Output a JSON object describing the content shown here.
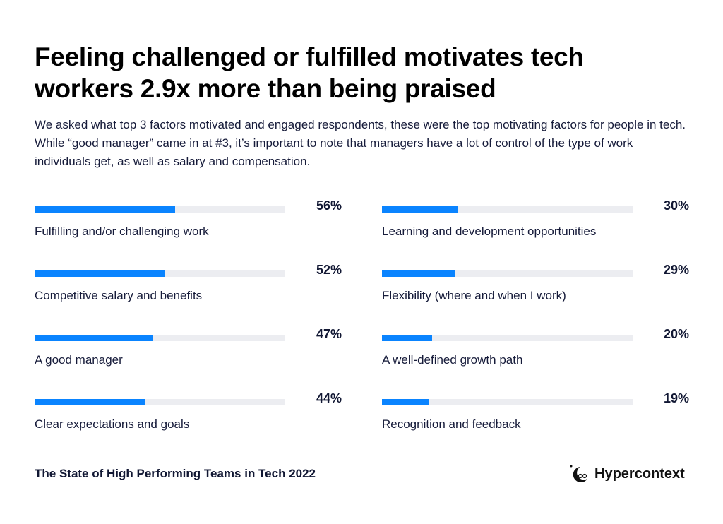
{
  "header": {
    "title": "Feeling challenged or fulfilled motivates tech workers 2.9x more than being praised",
    "subtitle": "We asked what top 3 factors motivated and engaged respondents, these were the top motivating factors for people in tech. While “good manager” came in at #3, it’s important to note that managers have a lot of control of the type of work individuals get, as well as salary and compensation."
  },
  "chart_data": {
    "type": "bar",
    "orientation": "horizontal",
    "xlim": [
      0,
      100
    ],
    "bar_color": "#0a84ff",
    "track_color": "#ecedf1",
    "categories": [
      "Fulfilling and/or challenging work",
      "Competitive salary and benefits",
      "A good manager",
      "Clear expectations and goals",
      "Learning and development opportunities",
      "Flexibility (where and when I work)",
      "A well-defined growth path",
      "Recognition and feedback"
    ],
    "values": [
      56,
      52,
      47,
      44,
      30,
      29,
      20,
      19
    ],
    "labels": [
      "56%",
      "52%",
      "47%",
      "44%",
      "30%",
      "29%",
      "20%",
      "19%"
    ]
  },
  "footer": {
    "source": "The State of High Performing Teams in Tech 2022",
    "brand": "Hypercontext"
  }
}
